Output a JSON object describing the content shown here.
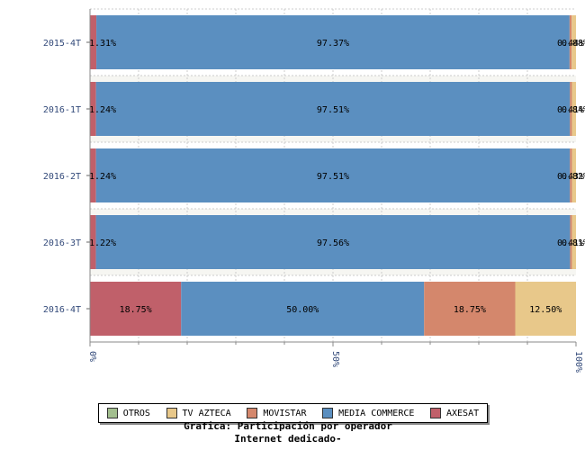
{
  "chart_data": {
    "type": "bar",
    "orientation": "horizontal",
    "stacked": "percent",
    "categories": [
      "2015-4T",
      "2016-1T",
      "2016-2T",
      "2016-3T",
      "2016-4T"
    ],
    "series": [
      {
        "name": "AXESAT",
        "color": "#c0606a",
        "values": [
          1.31,
          1.24,
          1.24,
          1.22,
          18.75
        ],
        "labels": [
          "1.31%",
          "1.24%",
          "1.24%",
          "1.22%",
          "18.75%"
        ]
      },
      {
        "name": "MEDIA COMMERCE",
        "color": "#5b8fc0",
        "values": [
          97.37,
          97.51,
          97.51,
          97.56,
          50.0
        ],
        "labels": [
          "97.37%",
          "97.51%",
          "97.51%",
          "97.56%",
          "50.00%"
        ]
      },
      {
        "name": "MOVISTAR",
        "color": "#d4876c",
        "values": [
          0.44,
          0.41,
          0.43,
          0.41,
          18.75
        ],
        "labels": [
          "0.44%",
          "0.41%",
          "0.43%",
          "0.41%",
          "18.75%"
        ]
      },
      {
        "name": "TV AZTECA",
        "color": "#e8c88a",
        "values": [
          0.88,
          0.84,
          0.82,
          0.81,
          12.5
        ],
        "labels": [
          "0.88%",
          "0.84%",
          "0.82%",
          "0.81%",
          "12.50%"
        ]
      },
      {
        "name": "OTROS",
        "color": "#a3bf8f",
        "values": [
          0,
          0,
          0,
          0,
          0
        ],
        "labels": [
          "",
          "",
          "",
          "",
          ""
        ]
      }
    ],
    "xlim": [
      0,
      100
    ],
    "xticks": [
      "0%",
      "50%",
      "100%"
    ],
    "grid": true,
    "legend_position": "bottom"
  },
  "legend": [
    {
      "label": "OTROS",
      "color": "#a3bf8f"
    },
    {
      "label": "TV AZTECA",
      "color": "#e8c88a"
    },
    {
      "label": "MOVISTAR",
      "color": "#d4876c"
    },
    {
      "label": "MEDIA COMMERCE",
      "color": "#5b8fc0"
    },
    {
      "label": "AXESAT",
      "color": "#c0606a"
    }
  ],
  "caption": {
    "line1": "Grafica: Participación por operador",
    "line2": "Internet dedicado-"
  }
}
